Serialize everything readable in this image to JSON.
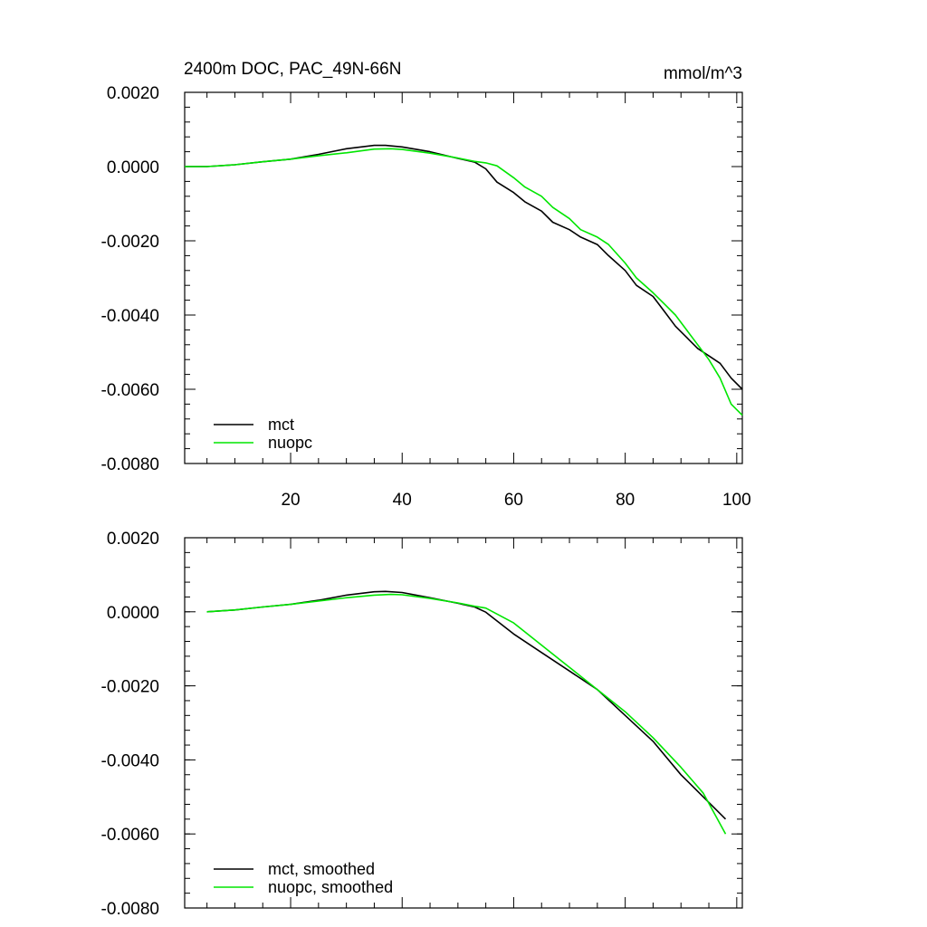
{
  "header": {
    "title": "2400m DOC, PAC_49N-66N",
    "units": "mmol/m^3"
  },
  "colors": {
    "mct": "#000000",
    "nuopc": "#00e600",
    "axis": "#000000",
    "background": "#ffffff"
  },
  "chart_data": [
    {
      "type": "line",
      "title": "2400m DOC, PAC_49N-66N",
      "units": "mmol/m^3",
      "xlabel": "",
      "ylabel": "",
      "xlim": [
        1,
        101
      ],
      "ylim": [
        -0.008,
        0.002
      ],
      "x_ticks": [
        20,
        40,
        60,
        80,
        100
      ],
      "x_tick_labels": [
        "20",
        "40",
        "60",
        "80",
        "100"
      ],
      "y_ticks": [
        0.002,
        0.0,
        -0.002,
        -0.004,
        -0.006,
        -0.008
      ],
      "y_tick_labels": [
        "0.0020",
        "0.0000",
        "-0.0020",
        "-0.0040",
        "-0.0060",
        "-0.0080"
      ],
      "grid": false,
      "legend_position": "bottom-left",
      "series": [
        {
          "name": "mct",
          "color": "#000000",
          "x": [
            1,
            5,
            10,
            15,
            20,
            25,
            30,
            35,
            37,
            40,
            45,
            50,
            53,
            55,
            57,
            60,
            62,
            65,
            67,
            70,
            72,
            75,
            77,
            80,
            82,
            85,
            87,
            89,
            91,
            93,
            95,
            97,
            99,
            101
          ],
          "y": [
            0.0,
            0.0,
            5e-05,
            0.00013,
            0.0002,
            0.00033,
            0.00048,
            0.00057,
            0.00057,
            0.00053,
            0.0004,
            0.00022,
            0.00012,
            -6e-05,
            -0.00042,
            -0.0007,
            -0.00095,
            -0.0012,
            -0.0015,
            -0.0017,
            -0.0019,
            -0.0021,
            -0.0024,
            -0.0028,
            -0.0032,
            -0.0035,
            -0.0039,
            -0.0043,
            -0.0046,
            -0.0049,
            -0.0051,
            -0.0053,
            -0.0057,
            -0.006
          ]
        },
        {
          "name": "nuopc",
          "color": "#00e600",
          "x": [
            1,
            5,
            10,
            15,
            20,
            25,
            30,
            35,
            38,
            40,
            45,
            50,
            53,
            55,
            57,
            60,
            62,
            65,
            67,
            70,
            72,
            75,
            77,
            80,
            82,
            85,
            87,
            89,
            91,
            93,
            95,
            97,
            99,
            101
          ],
          "y": [
            0.0,
            0.0,
            5e-05,
            0.00013,
            0.0002,
            0.00029,
            0.00037,
            0.00047,
            0.00048,
            0.00046,
            0.00036,
            0.00023,
            0.00014,
            0.0001,
            2e-05,
            -0.0003,
            -0.00055,
            -0.0008,
            -0.0011,
            -0.0014,
            -0.0017,
            -0.0019,
            -0.0021,
            -0.0026,
            -0.003,
            -0.0034,
            -0.0037,
            -0.004,
            -0.0044,
            -0.0048,
            -0.0052,
            -0.0057,
            -0.0064,
            -0.0067
          ]
        }
      ]
    },
    {
      "type": "line",
      "title": "",
      "xlabel": "",
      "ylabel": "",
      "xlim": [
        1,
        101
      ],
      "ylim": [
        -0.008,
        0.002
      ],
      "x_ticks": [
        20,
        40,
        60,
        80,
        100
      ],
      "x_tick_labels": [],
      "y_ticks": [
        0.002,
        0.0,
        -0.002,
        -0.004,
        -0.006,
        -0.008
      ],
      "y_tick_labels": [
        "0.0020",
        "0.0000",
        "-0.0020",
        "-0.0040",
        "-0.0060",
        "-0.0080"
      ],
      "grid": false,
      "legend_position": "bottom-left",
      "series": [
        {
          "name": "mct, smoothed",
          "color": "#000000",
          "x": [
            5,
            10,
            15,
            20,
            25,
            30,
            35,
            37,
            40,
            45,
            50,
            53,
            55,
            60,
            65,
            70,
            75,
            80,
            85,
            90,
            94,
            98
          ],
          "y": [
            0.0,
            5e-05,
            0.00013,
            0.0002,
            0.00031,
            0.00045,
            0.00054,
            0.00055,
            0.00052,
            0.00038,
            0.00023,
            0.00013,
            -1e-05,
            -0.0006,
            -0.0011,
            -0.0016,
            -0.0021,
            -0.0028,
            -0.0035,
            -0.0044,
            -0.005,
            -0.0056
          ]
        },
        {
          "name": "nuopc, smoothed",
          "color": "#00e600",
          "x": [
            5,
            10,
            15,
            20,
            25,
            30,
            35,
            38,
            40,
            45,
            50,
            53,
            55,
            60,
            65,
            70,
            75,
            80,
            85,
            90,
            94,
            98
          ],
          "y": [
            0.0,
            5e-05,
            0.00013,
            0.0002,
            0.00029,
            0.00038,
            0.00045,
            0.00047,
            0.00046,
            0.00036,
            0.00024,
            0.00015,
            0.0001,
            -0.0003,
            -0.0009,
            -0.0015,
            -0.0021,
            -0.0027,
            -0.0034,
            -0.0042,
            -0.0049,
            -0.006
          ]
        }
      ]
    }
  ]
}
